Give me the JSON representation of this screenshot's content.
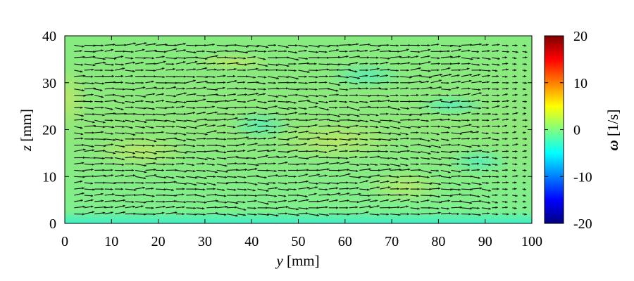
{
  "chart_data": {
    "type": "heatmap",
    "subtype": "vector-field-over-vorticity-map",
    "xlabel": {
      "var": "y",
      "unit": " [mm]"
    },
    "ylabel": {
      "var": "z",
      "unit": " [mm]"
    },
    "xlim": [
      0,
      100
    ],
    "ylim": [
      0,
      40
    ],
    "xticks": [
      "0",
      "10",
      "20",
      "30",
      "40",
      "50",
      "60",
      "70",
      "80",
      "90",
      "100"
    ],
    "yticks": [
      "0",
      "10",
      "20",
      "30",
      "40"
    ],
    "colorbar": {
      "label": {
        "var": "ω",
        "unit": " [1/s]"
      },
      "range": [
        -20,
        20
      ],
      "ticks": [
        "20",
        "10",
        "0",
        "-10",
        "-20"
      ],
      "colormap": "jet",
      "colors": [
        "#00007f",
        "#0000ff",
        "#007fff",
        "#00ffff",
        "#7fff7f",
        "#ffff00",
        "#ff7f00",
        "#ff0000",
        "#7f0000"
      ]
    },
    "background_vorticity_range_approx": [
      -2,
      3
    ],
    "vectors": {
      "y_range": [
        2,
        98
      ],
      "z_range": [
        2,
        38
      ],
      "rows": 28,
      "cols": 45,
      "mean_direction": "positive y",
      "nominal_length": 1.0
    }
  }
}
